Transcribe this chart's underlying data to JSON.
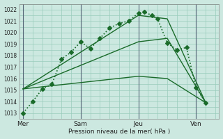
{
  "title": "",
  "xlabel": "Pression niveau de la mer( hPa )",
  "ylabel": "",
  "bg_color": "#cce8e0",
  "grid_color": "#99ccbb",
  "line_color": "#1a6b2a",
  "ylim_min": 1012.5,
  "ylim_max": 1022.5,
  "yticks": [
    1013,
    1014,
    1015,
    1016,
    1017,
    1018,
    1019,
    1020,
    1021,
    1022
  ],
  "xticklabels": [
    "Mer",
    "Sam",
    "Jeu",
    "Ven"
  ],
  "xtick_positions": [
    0,
    3,
    6,
    9
  ],
  "xlim_min": -0.2,
  "xlim_max": 10.2,
  "dotted_line": {
    "x": [
      0,
      0.5,
      1,
      1.5,
      2,
      2.5,
      3,
      3.5,
      4,
      4.5,
      5,
      5.5,
      6,
      6.3,
      6.7,
      7,
      7.5,
      8,
      8.5,
      9,
      9.5
    ],
    "y": [
      1013.0,
      1014.0,
      1015.1,
      1015.5,
      1017.7,
      1018.3,
      1019.2,
      1018.6,
      1019.5,
      1020.4,
      1020.8,
      1021.0,
      1021.7,
      1021.8,
      1021.5,
      1021.2,
      1019.1,
      1018.5,
      1018.7,
      1015.2,
      1013.9
    ],
    "marker": "D",
    "linestyle": "dotted",
    "linewidth": 1.2,
    "markersize": 3.0
  },
  "solid_lines": [
    {
      "x": [
        0,
        6,
        7.5,
        9.5
      ],
      "y": [
        1015.1,
        1021.5,
        1021.2,
        1013.9
      ]
    },
    {
      "x": [
        0,
        6,
        7.5,
        9.5
      ],
      "y": [
        1015.1,
        1019.2,
        1019.5,
        1013.9
      ]
    },
    {
      "x": [
        0,
        6,
        7.5,
        9.5
      ],
      "y": [
        1015.1,
        1016.2,
        1016.0,
        1013.9
      ]
    }
  ],
  "solid_linewidth": 1.0,
  "vline_color": "#556677",
  "vline_positions": [
    0,
    3,
    6,
    9
  ],
  "marker_size": 2.8
}
